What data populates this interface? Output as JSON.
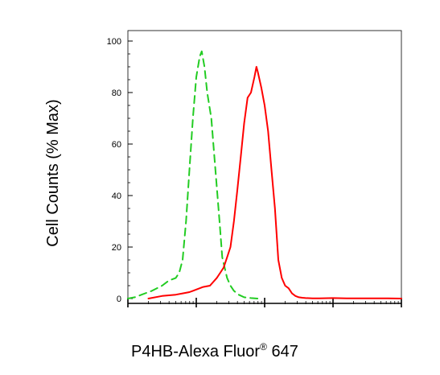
{
  "chart_data": {
    "type": "line",
    "ylabel": "Cell Counts (% Max)",
    "xlabel_main": "P4HB-Alexa Fluor",
    "xlabel_sup": "®",
    "xlabel_tail": " 647",
    "ylim": [
      0,
      100
    ],
    "yticks": [
      "0",
      "20",
      "40",
      "60",
      "80",
      "100"
    ],
    "x_scale": "log",
    "xlim_decades": [
      0,
      4
    ],
    "x_tick_labels": "none",
    "grid": false,
    "legend": "none",
    "series": [
      {
        "color": "#22cc22",
        "dash": true,
        "x": [
          0.0,
          0.1,
          0.2,
          0.35,
          0.5,
          0.6,
          0.7,
          0.75,
          0.8,
          0.85,
          0.9,
          0.95,
          1.0,
          1.05,
          1.08,
          1.12,
          1.16,
          1.22,
          1.28,
          1.34,
          1.38,
          1.45,
          1.5,
          1.55,
          1.62,
          1.7,
          1.8,
          1.9
        ],
        "y": [
          0,
          0.5,
          1.5,
          3,
          5,
          7,
          8,
          10,
          15,
          30,
          50,
          70,
          86,
          94,
          96,
          90,
          80,
          70,
          50,
          30,
          16,
          8,
          5,
          3,
          1.5,
          0.5,
          0.2,
          0
        ]
      },
      {
        "color": "#ff0000",
        "dash": false,
        "x": [
          0.3,
          0.5,
          0.7,
          0.8,
          0.9,
          0.95,
          1.0,
          1.05,
          1.1,
          1.2,
          1.3,
          1.35,
          1.4,
          1.45,
          1.5,
          1.55,
          1.6,
          1.65,
          1.7,
          1.75,
          1.8,
          1.85,
          1.88,
          1.9,
          1.95,
          2.0,
          2.05,
          2.1,
          2.15,
          2.2,
          2.25,
          2.3,
          2.35,
          2.4,
          2.45,
          2.5,
          2.55,
          2.6,
          2.7,
          2.8,
          3.0,
          3.2,
          3.5,
          3.8,
          4.0
        ],
        "y": [
          0,
          1,
          1.5,
          2,
          2.5,
          3,
          3.5,
          4,
          4.5,
          5,
          8,
          10,
          12,
          16,
          20,
          30,
          42,
          55,
          68,
          78,
          80,
          86,
          90,
          88,
          82,
          75,
          65,
          50,
          35,
          15,
          8,
          5,
          4,
          2,
          1,
          0.5,
          0.3,
          0.2,
          0.1,
          0.1,
          0.2,
          0.1,
          0.1,
          0.1,
          0
        ]
      }
    ]
  }
}
